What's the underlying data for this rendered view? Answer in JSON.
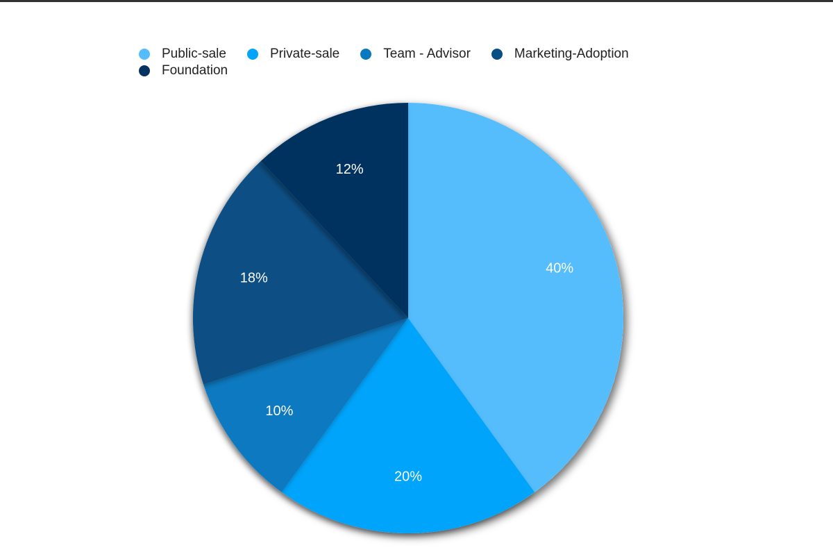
{
  "chart_data": {
    "type": "pie",
    "categories": [
      "Public-sale",
      "Private-sale",
      "Team - Advisor",
      "Marketing-Adoption",
      "Foundation"
    ],
    "values": [
      40,
      20,
      10,
      18,
      12
    ],
    "data_labels": [
      "40%",
      "20%",
      "10%",
      "18%",
      "12%"
    ],
    "colors": [
      "#55bdfc",
      "#04a4fb",
      "#0a79c0",
      "#074f85",
      "#053361"
    ],
    "start_angle_deg": 0,
    "direction": "clockwise",
    "legend_position": "top",
    "title": ""
  }
}
